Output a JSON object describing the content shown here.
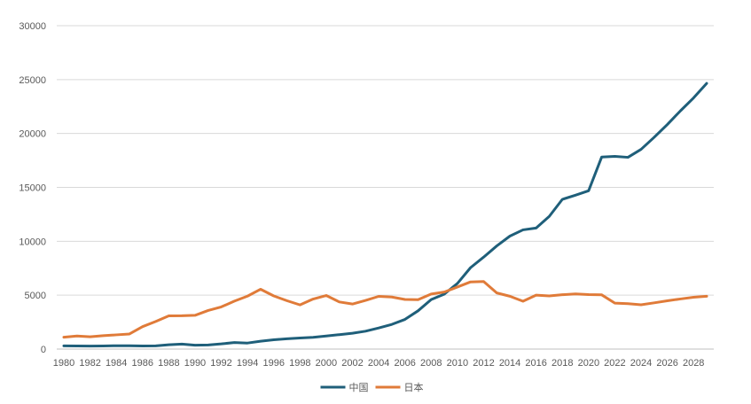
{
  "chart_data": {
    "type": "line",
    "title": "",
    "xlabel": "",
    "ylabel": "",
    "x": [
      1980,
      1981,
      1982,
      1983,
      1984,
      1985,
      1986,
      1987,
      1988,
      1989,
      1990,
      1991,
      1992,
      1993,
      1994,
      1995,
      1996,
      1997,
      1998,
      1999,
      2000,
      2001,
      2002,
      2003,
      2004,
      2005,
      2006,
      2007,
      2008,
      2009,
      2010,
      2011,
      2012,
      2013,
      2014,
      2015,
      2016,
      2017,
      2018,
      2019,
      2020,
      2021,
      2022,
      2023,
      2024,
      2025,
      2026,
      2027,
      2028,
      2029
    ],
    "x_tick_labels": [
      "1980",
      "1982",
      "1984",
      "1986",
      "1988",
      "1990",
      "1992",
      "1994",
      "1996",
      "1998",
      "2000",
      "2002",
      "2004",
      "2006",
      "2008",
      "2010",
      "2012",
      "2014",
      "2016",
      "2018",
      "2020",
      "2022",
      "2024",
      "2026",
      "2028"
    ],
    "y_tick_labels": [
      "0",
      "5000",
      "10000",
      "15000",
      "20000",
      "25000",
      "30000"
    ],
    "ylim": [
      0,
      30000
    ],
    "grid": true,
    "legend_position": "bottom",
    "series": [
      {
        "name": "中国",
        "color": "#1f5f7a",
        "values": [
          300,
          290,
          280,
          290,
          310,
          310,
          290,
          300,
          400,
          460,
          360,
          380,
          480,
          610,
          560,
          730,
          860,
          960,
          1030,
          1090,
          1210,
          1340,
          1470,
          1660,
          1960,
          2290,
          2750,
          3550,
          4590,
          5100,
          6090,
          7550,
          8530,
          9570,
          10480,
          11060,
          11230,
          12310,
          13890,
          14280,
          14690,
          17820,
          17880,
          17790,
          18530,
          19650,
          20830,
          22100,
          23300,
          24650
        ]
      },
      {
        "name": "日本",
        "color": "#e07b39",
        "values": [
          1100,
          1210,
          1140,
          1240,
          1320,
          1400,
          2080,
          2560,
          3080,
          3090,
          3130,
          3580,
          3910,
          4450,
          4910,
          5550,
          4930,
          4490,
          4100,
          4640,
          4970,
          4370,
          4180,
          4520,
          4890,
          4830,
          4600,
          4580,
          5110,
          5290,
          5760,
          6230,
          6270,
          5210,
          4900,
          4440,
          5000,
          4930,
          5040,
          5120,
          5050,
          5030,
          4260,
          4210,
          4110,
          4290,
          4480,
          4650,
          4810,
          4900
        ]
      }
    ]
  }
}
